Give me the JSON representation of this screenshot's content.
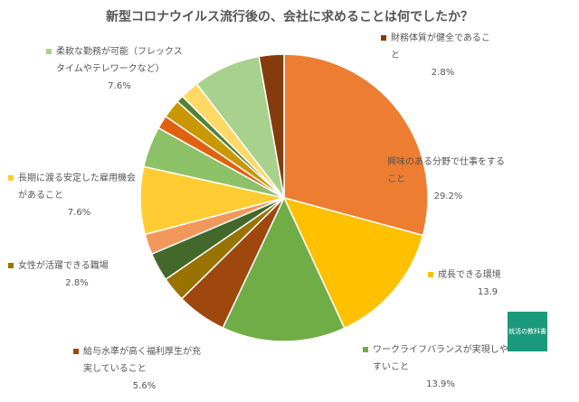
{
  "chart_data": {
    "type": "pie",
    "title": "新型コロナウイルス流行後の、会社に求めることは何でしたか？",
    "categories": [
      "興味のある分野で仕事をすること",
      "成長できる環境",
      "ワークライフバランスが実現しやすいこと",
      "給与水準が高く福利厚生が充実していること",
      "女性が活躍できる職場",
      null,
      null,
      "長期に渡る安定した雇用機会があること",
      null,
      null,
      null,
      null,
      null,
      "柔軟な勤務が可能（フレックスタイムやテレワークなど）",
      "財務体質が健全であること"
    ],
    "values": [
      29.2,
      13.9,
      13.9,
      5.6,
      2.8,
      3.2,
      2.3,
      7.6,
      4.6,
      1.5,
      2.1,
      0.8,
      2.1,
      7.6,
      2.8
    ],
    "value_labels": [
      "29.2%",
      "13.9",
      "13.9%",
      "5.6%",
      "2.8%",
      null,
      null,
      "7.6%",
      null,
      null,
      null,
      null,
      null,
      "7.6%",
      "2.8%"
    ],
    "colors": [
      "#ed7d31",
      "#ffc000",
      "#70ad47",
      "#9e480e",
      "#997300",
      "#43682b",
      "#f1975a",
      "#ffcd33",
      "#8cc168",
      "#e0620e",
      "#c99700",
      "#548235",
      "#ffd966",
      "#a9d18e",
      "#843c0c"
    ]
  },
  "logo_text": "就活の教科書"
}
